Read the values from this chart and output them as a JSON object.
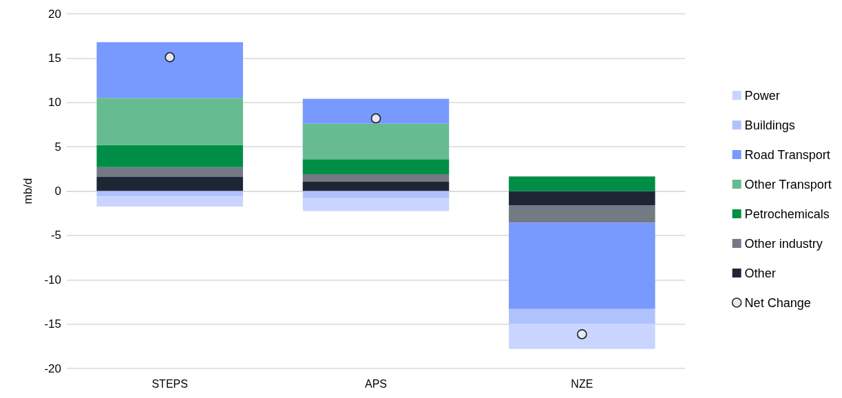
{
  "chart_data": {
    "type": "bar",
    "stacked": true,
    "ylabel": "mb/d",
    "categories": [
      "STEPS",
      "APS",
      "NZE"
    ],
    "series": [
      {
        "name": "Other",
        "color": "#1e2636",
        "values": [
          1.6,
          1.05,
          -1.6
        ]
      },
      {
        "name": "Other industry",
        "color": "#737a83",
        "values": [
          1.1,
          0.85,
          -1.95
        ]
      },
      {
        "name": "Petrochemicals",
        "color": "#008e47",
        "values": [
          2.5,
          1.7,
          1.65
        ]
      },
      {
        "name": "Other Transport",
        "color": "#66bb91",
        "values": [
          5.3,
          4.0,
          null
        ]
      },
      {
        "name": "Road Transport",
        "color": "#7899fd",
        "values": [
          6.3,
          2.8,
          -9.75
        ]
      },
      {
        "name": "Buildings",
        "color": "#b0c2fd",
        "values": [
          -0.6,
          -0.8,
          -1.65
        ]
      },
      {
        "name": "Power",
        "color": "#c9d5fe",
        "values": [
          -1.15,
          -1.45,
          -2.85
        ]
      },
      {
        "name": "Net Change",
        "type": "scatter",
        "color": "#e8e9eb",
        "marker": "circle",
        "x": [
          "STEPS",
          "APS",
          "NZE"
        ],
        "values": [
          15.1,
          8.2,
          -16.15
        ]
      }
    ],
    "ylim": [
      -20,
      20
    ],
    "yticks": [
      -20,
      -15,
      -10,
      -5,
      0,
      5,
      10,
      15,
      20
    ],
    "grid": "y",
    "legend": "right"
  }
}
